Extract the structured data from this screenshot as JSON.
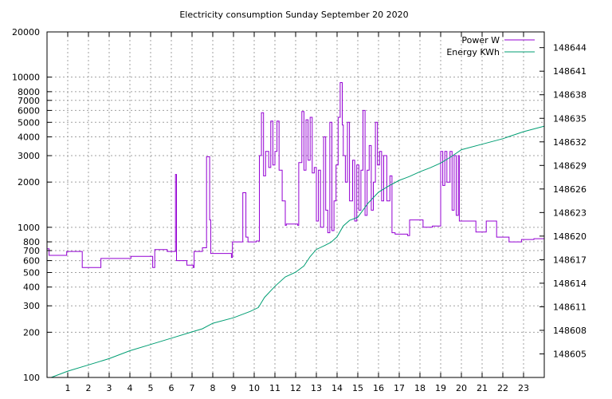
{
  "chart_data": {
    "type": "line",
    "title": "Electricity consumption Sunday September 20 2020",
    "xlabel": "",
    "ylabel": "",
    "y2label": "",
    "x_range": [
      0,
      24
    ],
    "x_ticks": [
      1,
      2,
      3,
      4,
      5,
      6,
      7,
      8,
      9,
      10,
      11,
      12,
      13,
      14,
      15,
      16,
      17,
      18,
      19,
      20,
      21,
      22,
      23
    ],
    "y_scale": "log",
    "y_range": [
      100,
      20000
    ],
    "y_ticks": [
      100,
      200,
      300,
      400,
      500,
      600,
      700,
      800,
      1000,
      2000,
      3000,
      4000,
      5000,
      6000,
      7000,
      8000,
      10000,
      20000
    ],
    "y2_range": [
      148602,
      148646
    ],
    "y2_ticks": [
      148605,
      148608,
      148611,
      148614,
      148617,
      148620,
      148623,
      148626,
      148629,
      148632,
      148635,
      148638,
      148641,
      148644
    ],
    "grid": true,
    "legend_position": "top-right",
    "series": [
      {
        "name": "Power W",
        "color": "#9400d3",
        "axis": "left",
        "step": true,
        "points": [
          [
            0,
            720
          ],
          [
            0.1,
            650
          ],
          [
            0.95,
            690
          ],
          [
            1.7,
            540
          ],
          [
            2.6,
            620
          ],
          [
            4.05,
            640
          ],
          [
            5.1,
            540
          ],
          [
            5.2,
            710
          ],
          [
            5.8,
            690
          ],
          [
            6.2,
            2250
          ],
          [
            6.25,
            600
          ],
          [
            6.75,
            560
          ],
          [
            7.05,
            540
          ],
          [
            7.1,
            690
          ],
          [
            7.5,
            730
          ],
          [
            7.7,
            2950
          ],
          [
            7.85,
            1120
          ],
          [
            7.9,
            670
          ],
          [
            8.9,
            630
          ],
          [
            8.95,
            800
          ],
          [
            9.45,
            1700
          ],
          [
            9.6,
            860
          ],
          [
            9.7,
            800
          ],
          [
            10.1,
            810
          ],
          [
            10.25,
            3000
          ],
          [
            10.35,
            5800
          ],
          [
            10.45,
            2200
          ],
          [
            10.55,
            3200
          ],
          [
            10.7,
            2500
          ],
          [
            10.8,
            5100
          ],
          [
            10.9,
            2600
          ],
          [
            11.0,
            3200
          ],
          [
            11.1,
            5100
          ],
          [
            11.2,
            2400
          ],
          [
            11.35,
            1500
          ],
          [
            11.5,
            1030
          ],
          [
            11.55,
            1050
          ],
          [
            12.1,
            1030
          ],
          [
            12.15,
            2700
          ],
          [
            12.3,
            5900
          ],
          [
            12.4,
            2400
          ],
          [
            12.5,
            5200
          ],
          [
            12.6,
            2800
          ],
          [
            12.7,
            5400
          ],
          [
            12.8,
            2300
          ],
          [
            12.9,
            2500
          ],
          [
            13.0,
            1100
          ],
          [
            13.1,
            2400
          ],
          [
            13.2,
            1000
          ],
          [
            13.35,
            4000
          ],
          [
            13.45,
            1300
          ],
          [
            13.55,
            920
          ],
          [
            13.65,
            5000
          ],
          [
            13.75,
            950
          ],
          [
            13.85,
            1500
          ],
          [
            13.95,
            2600
          ],
          [
            14.05,
            5400
          ],
          [
            14.15,
            9200
          ],
          [
            14.25,
            4800
          ],
          [
            14.3,
            3000
          ],
          [
            14.4,
            2000
          ],
          [
            14.5,
            5000
          ],
          [
            14.6,
            1500
          ],
          [
            14.75,
            2800
          ],
          [
            14.85,
            1100
          ],
          [
            14.95,
            2600
          ],
          [
            15.05,
            1300
          ],
          [
            15.15,
            2400
          ],
          [
            15.25,
            6000
          ],
          [
            15.35,
            1200
          ],
          [
            15.45,
            2400
          ],
          [
            15.55,
            3500
          ],
          [
            15.65,
            1300
          ],
          [
            15.75,
            2000
          ],
          [
            15.85,
            5000
          ],
          [
            15.95,
            2600
          ],
          [
            16.05,
            3200
          ],
          [
            16.15,
            1500
          ],
          [
            16.25,
            3000
          ],
          [
            16.4,
            1500
          ],
          [
            16.55,
            2200
          ],
          [
            16.65,
            920
          ],
          [
            16.8,
            900
          ],
          [
            17.4,
            880
          ],
          [
            17.5,
            1120
          ],
          [
            18.15,
            1000
          ],
          [
            18.6,
            1020
          ],
          [
            19.0,
            3200
          ],
          [
            19.1,
            1900
          ],
          [
            19.2,
            3200
          ],
          [
            19.3,
            2000
          ],
          [
            19.45,
            3200
          ],
          [
            19.55,
            1300
          ],
          [
            19.65,
            3000
          ],
          [
            19.75,
            1200
          ],
          [
            19.85,
            3000
          ],
          [
            19.9,
            1100
          ],
          [
            20.0,
            1100
          ],
          [
            20.7,
            930
          ],
          [
            21.2,
            1100
          ],
          [
            21.7,
            860
          ],
          [
            22.3,
            800
          ],
          [
            22.9,
            830
          ],
          [
            23.5,
            840
          ],
          [
            24,
            820
          ]
        ]
      },
      {
        "name": "Energy KWh",
        "color": "#009e73",
        "axis": "right",
        "step": false,
        "points": [
          [
            0.2,
            148602.0
          ],
          [
            1,
            148602.8
          ],
          [
            2,
            148603.6
          ],
          [
            3,
            148604.4
          ],
          [
            4,
            148605.4
          ],
          [
            5,
            148606.2
          ],
          [
            6,
            148607.0
          ],
          [
            7,
            148607.8
          ],
          [
            7.5,
            148608.2
          ],
          [
            8,
            148608.9
          ],
          [
            9,
            148609.6
          ],
          [
            9.8,
            148610.4
          ],
          [
            10.2,
            148610.9
          ],
          [
            10.5,
            148612.2
          ],
          [
            11,
            148613.6
          ],
          [
            11.5,
            148614.8
          ],
          [
            12,
            148615.4
          ],
          [
            12.4,
            148616.2
          ],
          [
            12.7,
            148617.4
          ],
          [
            13,
            148618.3
          ],
          [
            13.4,
            148618.8
          ],
          [
            13.7,
            148619.2
          ],
          [
            14,
            148619.9
          ],
          [
            14.3,
            148621.3
          ],
          [
            14.6,
            148622.0
          ],
          [
            15,
            148622.4
          ],
          [
            15.5,
            148624.2
          ],
          [
            16,
            148625.6
          ],
          [
            16.5,
            148626.4
          ],
          [
            17,
            148627.1
          ],
          [
            17.5,
            148627.6
          ],
          [
            18,
            148628.2
          ],
          [
            18.5,
            148628.7
          ],
          [
            19,
            148629.3
          ],
          [
            19.5,
            148630.1
          ],
          [
            20,
            148631.0
          ],
          [
            21,
            148631.7
          ],
          [
            22,
            148632.4
          ],
          [
            23,
            148633.3
          ],
          [
            24,
            148634.0
          ]
        ]
      }
    ]
  }
}
